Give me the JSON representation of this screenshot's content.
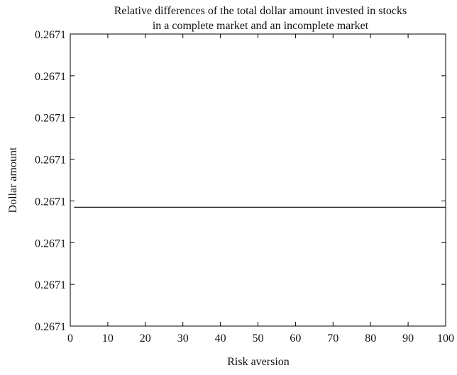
{
  "chart_data": {
    "type": "line",
    "title_lines": [
      "Relative differences of the total dollar amount invested in stocks",
      "in a complete market and an incomplete market"
    ],
    "xlabel": "Risk aversion",
    "ylabel": "Dollar amount",
    "xlim": [
      0,
      100
    ],
    "ylim": [
      0,
      7
    ],
    "x_ticks": [
      0,
      10,
      20,
      30,
      40,
      50,
      60,
      70,
      80,
      90,
      100
    ],
    "x_tick_labels": [
      "0",
      "10",
      "20",
      "30",
      "40",
      "50",
      "60",
      "70",
      "80",
      "90",
      "100"
    ],
    "y_ticks": [
      0,
      1,
      2,
      3,
      4,
      5,
      6,
      7
    ],
    "y_tick_labels": [
      "0.2671",
      "0.2671",
      "0.2671",
      "0.2671",
      "0.2671",
      "0.2671",
      "0.2671",
      "0.2671"
    ],
    "grid": false,
    "series": [
      {
        "x": [
          1,
          100
        ],
        "y": [
          2.85,
          2.85
        ],
        "color": "#000000"
      }
    ]
  }
}
